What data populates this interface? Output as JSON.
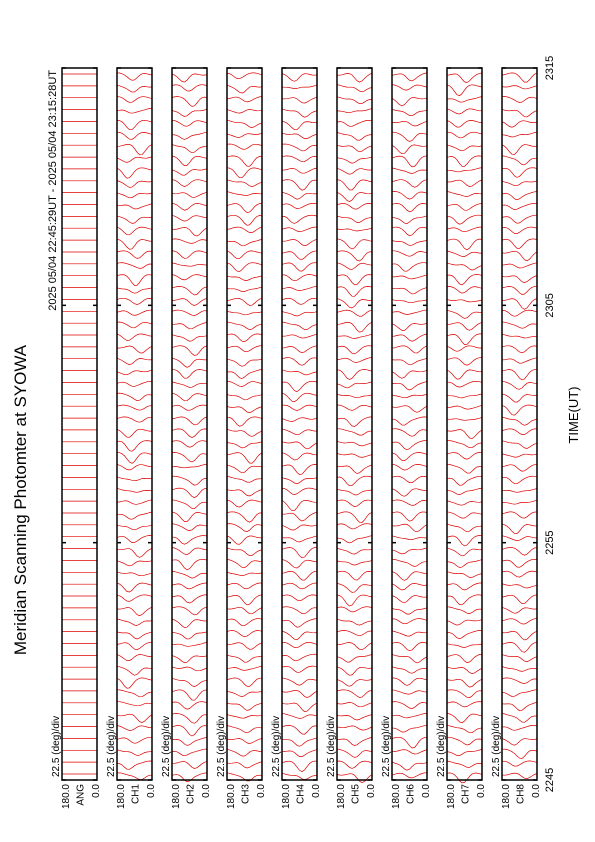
{
  "chart_data": {
    "type": "scan-panels",
    "title": "Meridian Scanning Photomter at SYOWA",
    "subtitle": "2025 05/04 22:45:29UT - 2025 05/04 23:15:28UT",
    "x_label": "TIME(UT)",
    "xticks": [
      "2245",
      "2255",
      "2305",
      "2315"
    ],
    "trace_color": "#dd0000",
    "panels": [
      {
        "channel": "ANG",
        "ymax_label": "180.0",
        "ymin_label": "0.0",
        "scale_label": "22.5 (deg)/div"
      },
      {
        "channel": "CH1",
        "ymax_label": "180.0",
        "ymin_label": "0.0",
        "scale_label": "22.5 (deg)/div"
      },
      {
        "channel": "CH2",
        "ymax_label": "180.0",
        "ymin_label": "0.0",
        "scale_label": "22.5 (deg)/div"
      },
      {
        "channel": "CH3",
        "ymax_label": "180.0",
        "ymin_label": "0.0",
        "scale_label": "22.5 (deg)/div"
      },
      {
        "channel": "CH4",
        "ymax_label": "180.0",
        "ymin_label": "0.0",
        "scale_label": "22.5 (deg)/div"
      },
      {
        "channel": "CH5",
        "ymax_label": "180.0",
        "ymin_label": "0.0",
        "scale_label": "22.5 (deg)/div"
      },
      {
        "channel": "CH6",
        "ymax_label": "180.0",
        "ymin_label": "0.0",
        "scale_label": "22.5 (deg)/div"
      },
      {
        "channel": "CH7",
        "ymax_label": "180.0",
        "ymin_label": "0.0",
        "scale_label": "22.5 (deg)/div"
      },
      {
        "channel": "CH8",
        "ymax_label": "180.0",
        "ymin_label": "0.0",
        "scale_label": "22.5 (deg)/div"
      }
    ]
  }
}
